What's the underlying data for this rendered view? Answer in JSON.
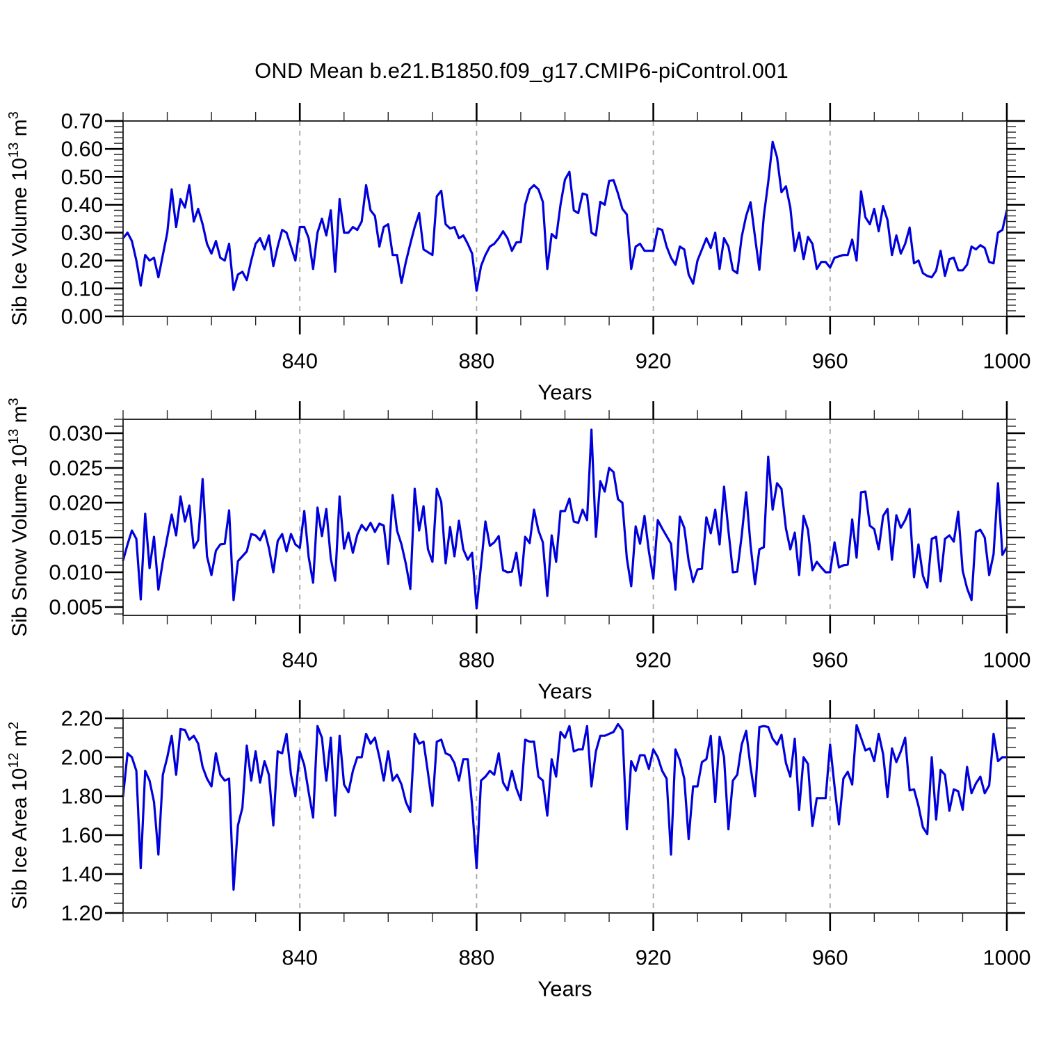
{
  "title": "OND Mean b.e21.B1850.f09_g17.CMIP6-piControl.001",
  "colors": {
    "line": "#0000dd",
    "grid": "#a6a6a6",
    "frame": "#2e2e2e",
    "major_tick": "#000000",
    "minor_tick": "#222222",
    "text": "#000000",
    "background": "#ffffff"
  },
  "x_axis": {
    "label": "Years",
    "start": 800,
    "end": 1000,
    "major_ticks": [
      840,
      880,
      920,
      960,
      1000
    ],
    "major_tick_labels": [
      "840",
      "880",
      "920",
      "960",
      "1000"
    ],
    "minor_step": 10,
    "gridline_years": [
      840,
      880,
      920,
      960
    ]
  },
  "chart_data": [
    {
      "type": "line",
      "name": "Sib Ice Volume",
      "ylabel": "Sib Ice Volume 10¹³ m³",
      "ylabel_parts": [
        {
          "text": "Sib Ice Volume 10"
        },
        {
          "text": "13",
          "sup": true
        },
        {
          "text": " m"
        },
        {
          "text": "3",
          "sup": true
        }
      ],
      "ylim": [
        0.0,
        0.7
      ],
      "ytick_values": [
        0.0,
        0.1,
        0.2,
        0.3,
        0.4,
        0.5,
        0.6,
        0.7
      ],
      "ytick_labels": [
        "0.00",
        "0.10",
        "0.20",
        "0.30",
        "0.40",
        "0.50",
        "0.60",
        "0.70"
      ],
      "y_minor_step": 0.02,
      "x_start": 800,
      "x_step": 1,
      "values": [
        0.28,
        0.3,
        0.27,
        0.2,
        0.11,
        0.22,
        0.2,
        0.21,
        0.14,
        0.22,
        0.3,
        0.455,
        0.32,
        0.42,
        0.39,
        0.47,
        0.34,
        0.385,
        0.33,
        0.26,
        0.225,
        0.27,
        0.21,
        0.2,
        0.26,
        0.095,
        0.15,
        0.16,
        0.13,
        0.2,
        0.26,
        0.28,
        0.24,
        0.29,
        0.18,
        0.25,
        0.31,
        0.3,
        0.25,
        0.2,
        0.32,
        0.32,
        0.28,
        0.17,
        0.3,
        0.35,
        0.29,
        0.38,
        0.16,
        0.42,
        0.3,
        0.3,
        0.32,
        0.31,
        0.34,
        0.47,
        0.38,
        0.36,
        0.25,
        0.32,
        0.33,
        0.22,
        0.22,
        0.12,
        0.195,
        0.26,
        0.32,
        0.37,
        0.24,
        0.23,
        0.22,
        0.43,
        0.45,
        0.33,
        0.315,
        0.32,
        0.28,
        0.29,
        0.26,
        0.225,
        0.092,
        0.18,
        0.22,
        0.25,
        0.26,
        0.28,
        0.305,
        0.28,
        0.235,
        0.265,
        0.266,
        0.4,
        0.455,
        0.47,
        0.455,
        0.41,
        0.17,
        0.295,
        0.28,
        0.4,
        0.49,
        0.518,
        0.38,
        0.37,
        0.44,
        0.435,
        0.3,
        0.29,
        0.41,
        0.4,
        0.485,
        0.488,
        0.44,
        0.385,
        0.365,
        0.17,
        0.25,
        0.26,
        0.235,
        0.235,
        0.235,
        0.315,
        0.31,
        0.25,
        0.21,
        0.185,
        0.25,
        0.24,
        0.15,
        0.117,
        0.2,
        0.24,
        0.28,
        0.245,
        0.3,
        0.17,
        0.28,
        0.25,
        0.166,
        0.155,
        0.285,
        0.36,
        0.409,
        0.285,
        0.167,
        0.36,
        0.48,
        0.625,
        0.57,
        0.445,
        0.466,
        0.39,
        0.235,
        0.3,
        0.205,
        0.285,
        0.26,
        0.17,
        0.195,
        0.195,
        0.175,
        0.21,
        0.215,
        0.22,
        0.22,
        0.275,
        0.2,
        0.448,
        0.355,
        0.33,
        0.385,
        0.305,
        0.395,
        0.345,
        0.22,
        0.29,
        0.225,
        0.26,
        0.318,
        0.19,
        0.2,
        0.155,
        0.145,
        0.14,
        0.164,
        0.235,
        0.145,
        0.205,
        0.21,
        0.165,
        0.165,
        0.185,
        0.25,
        0.24,
        0.255,
        0.245,
        0.195,
        0.19,
        0.3,
        0.31,
        0.38
      ]
    },
    {
      "type": "line",
      "name": "Sib Snow Volume",
      "ylabel": "Sib Snow Volume 10¹³ m³",
      "ylabel_parts": [
        {
          "text": "Sib Snow Volume 10"
        },
        {
          "text": "13",
          "sup": true
        },
        {
          "text": " m"
        },
        {
          "text": "3",
          "sup": true
        }
      ],
      "ylim": [
        0.0038,
        0.032
      ],
      "ytick_values": [
        0.005,
        0.01,
        0.015,
        0.02,
        0.025,
        0.03
      ],
      "ytick_labels": [
        "0.005",
        "0.010",
        "0.015",
        "0.020",
        "0.025",
        "0.030"
      ],
      "y_minor_step": 0.001,
      "x_start": 800,
      "x_step": 1,
      "values": [
        0.0117,
        0.014,
        0.016,
        0.0148,
        0.0061,
        0.0184,
        0.0106,
        0.0151,
        0.0075,
        0.0116,
        0.015,
        0.0183,
        0.0153,
        0.0209,
        0.0173,
        0.0196,
        0.0135,
        0.0146,
        0.0234,
        0.0123,
        0.0096,
        0.0131,
        0.014,
        0.0141,
        0.0189,
        0.006,
        0.0116,
        0.0123,
        0.013,
        0.0155,
        0.0153,
        0.0146,
        0.016,
        0.0135,
        0.01,
        0.0145,
        0.0155,
        0.013,
        0.0155,
        0.014,
        0.0135,
        0.0188,
        0.0122,
        0.0085,
        0.0193,
        0.0152,
        0.0191,
        0.012,
        0.0088,
        0.0209,
        0.0134,
        0.0157,
        0.0128,
        0.0154,
        0.0168,
        0.016,
        0.0171,
        0.0158,
        0.017,
        0.0167,
        0.0112,
        0.0211,
        0.016,
        0.014,
        0.0112,
        0.0076,
        0.022,
        0.016,
        0.0195,
        0.0133,
        0.0115,
        0.022,
        0.0201,
        0.0113,
        0.0165,
        0.0123,
        0.0174,
        0.0133,
        0.0118,
        0.0128,
        0.0048,
        0.011,
        0.0173,
        0.0138,
        0.0143,
        0.0152,
        0.0103,
        0.01,
        0.0101,
        0.0128,
        0.0081,
        0.0151,
        0.0142,
        0.019,
        0.016,
        0.0143,
        0.0066,
        0.0153,
        0.0115,
        0.0188,
        0.0188,
        0.0206,
        0.0173,
        0.0171,
        0.019,
        0.0175,
        0.0305,
        0.0151,
        0.0231,
        0.0216,
        0.025,
        0.0244,
        0.0205,
        0.02,
        0.012,
        0.008,
        0.0166,
        0.0141,
        0.0181,
        0.013,
        0.0091,
        0.0175,
        0.0163,
        0.0152,
        0.0141,
        0.0075,
        0.018,
        0.0164,
        0.0116,
        0.0086,
        0.0104,
        0.0105,
        0.0179,
        0.0156,
        0.019,
        0.014,
        0.0223,
        0.016,
        0.01,
        0.0101,
        0.0153,
        0.0215,
        0.0139,
        0.0083,
        0.0133,
        0.0136,
        0.0266,
        0.019,
        0.0228,
        0.022,
        0.0163,
        0.0133,
        0.0157,
        0.0096,
        0.0181,
        0.0161,
        0.0103,
        0.0115,
        0.0107,
        0.01,
        0.01,
        0.0143,
        0.0107,
        0.011,
        0.0111,
        0.0176,
        0.0121,
        0.0215,
        0.0216,
        0.0167,
        0.0162,
        0.0133,
        0.0181,
        0.0191,
        0.0118,
        0.0182,
        0.0164,
        0.0175,
        0.0191,
        0.0093,
        0.014,
        0.0095,
        0.0078,
        0.0148,
        0.0151,
        0.0087,
        0.0148,
        0.0153,
        0.0144,
        0.0187,
        0.0102,
        0.0077,
        0.006,
        0.0158,
        0.0161,
        0.015,
        0.0096,
        0.0126,
        0.0228,
        0.0125,
        0.0136
      ]
    },
    {
      "type": "line",
      "name": "Sib Ice Area",
      "ylabel": "Sib Ice Area 10¹² m²",
      "ylabel_parts": [
        {
          "text": "Sib Ice Area 10"
        },
        {
          "text": "12",
          "sup": true
        },
        {
          "text": " m"
        },
        {
          "text": "2",
          "sup": true
        }
      ],
      "ylim": [
        1.2,
        2.2
      ],
      "ytick_values": [
        1.2,
        1.4,
        1.6,
        1.8,
        2.0,
        2.2
      ],
      "ytick_labels": [
        "1.20",
        "1.40",
        "1.60",
        "1.80",
        "2.00",
        "2.20"
      ],
      "y_minor_step": 0.05,
      "x_start": 800,
      "x_step": 1,
      "values": [
        1.8,
        2.02,
        2.0,
        1.93,
        1.43,
        1.93,
        1.88,
        1.77,
        1.5,
        1.91,
        2.0,
        2.11,
        1.91,
        2.145,
        2.14,
        2.09,
        2.11,
        2.07,
        1.95,
        1.89,
        1.85,
        2.02,
        1.91,
        1.88,
        1.89,
        1.32,
        1.65,
        1.74,
        2.06,
        1.88,
        2.03,
        1.87,
        1.98,
        1.91,
        1.65,
        2.03,
        2.02,
        2.12,
        1.91,
        1.8,
        2.03,
        1.96,
        1.82,
        1.69,
        2.16,
        2.1,
        1.88,
        2.1,
        1.7,
        2.11,
        1.86,
        1.82,
        1.93,
        2.0,
        2.0,
        2.12,
        2.07,
        2.1,
        2.0,
        1.88,
        2.03,
        1.88,
        1.91,
        1.86,
        1.77,
        1.72,
        2.12,
        2.07,
        2.08,
        1.92,
        1.75,
        2.08,
        2.09,
        2.02,
        2.01,
        1.97,
        1.88,
        1.99,
        1.99,
        1.75,
        1.43,
        1.88,
        1.9,
        1.93,
        1.91,
        2.02,
        1.87,
        1.83,
        1.93,
        1.84,
        1.78,
        2.09,
        2.08,
        2.08,
        1.9,
        1.88,
        1.7,
        1.99,
        1.9,
        2.13,
        2.1,
        2.16,
        2.03,
        2.04,
        2.04,
        2.16,
        1.85,
        2.03,
        2.11,
        2.11,
        2.12,
        2.13,
        2.17,
        2.14,
        1.63,
        1.98,
        1.93,
        2.01,
        2.01,
        1.94,
        2.04,
        2.0,
        1.93,
        1.89,
        1.5,
        2.04,
        1.985,
        1.89,
        1.58,
        1.85,
        1.85,
        1.975,
        1.99,
        2.11,
        1.77,
        2.105,
        2.0,
        1.63,
        1.88,
        1.91,
        2.065,
        2.135,
        1.95,
        1.8,
        2.155,
        2.16,
        2.155,
        2.095,
        2.065,
        2.115,
        1.97,
        1.9,
        2.095,
        1.73,
        2.0,
        1.965,
        1.648,
        1.79,
        1.79,
        1.79,
        2.065,
        1.85,
        1.655,
        1.89,
        1.925,
        1.86,
        2.165,
        2.1,
        2.035,
        2.045,
        1.98,
        2.12,
        2.015,
        1.795,
        2.045,
        1.975,
        2.03,
        2.1,
        1.83,
        1.835,
        1.75,
        1.64,
        1.605,
        2.0,
        1.68,
        1.935,
        1.91,
        1.725,
        1.835,
        1.825,
        1.73,
        1.95,
        1.815,
        1.865,
        1.9,
        1.815,
        1.855,
        2.12,
        1.98,
        2.0,
        2.0
      ]
    }
  ]
}
